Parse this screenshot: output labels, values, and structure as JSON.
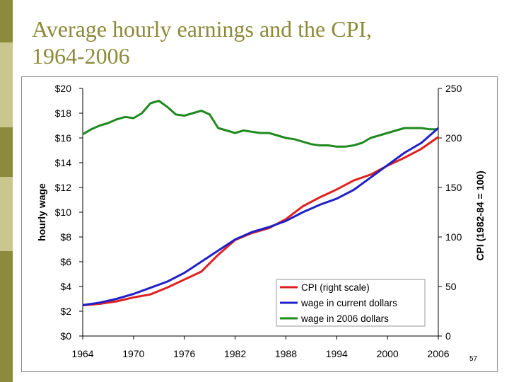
{
  "slide": {
    "title_line1": "Average hourly earnings and the CPI,",
    "title_line2": "1964-2006",
    "slide_number": "57",
    "colors": {
      "title": "#8c8a3c",
      "sidebar_olive": "#8c8a3c",
      "sidebar_khaki": "#c9c78f"
    }
  },
  "chart_data": {
    "type": "line",
    "title": "",
    "xlabel": "",
    "ylabel_left": "hourly wage",
    "ylabel_right": "CPI  (1982-84 = 100)",
    "xlim": [
      1964,
      2006
    ],
    "ylim_left": [
      0,
      20
    ],
    "ylim_right": [
      0,
      250
    ],
    "x_ticks": [
      "1964",
      "1970",
      "1976",
      "1982",
      "1988",
      "1994",
      "2000",
      "2006"
    ],
    "y_left_ticks": [
      "$0",
      "$2",
      "$4",
      "$6",
      "$8",
      "$10",
      "$12",
      "$14",
      "$16",
      "$18",
      "$20"
    ],
    "y_right_ticks": [
      "0",
      "50",
      "100",
      "150",
      "200",
      "250"
    ],
    "legend_position": "bottom-right",
    "grid": false,
    "series": [
      {
        "name": "CPI  (right scale)",
        "axis": "right",
        "color": "#e02020",
        "x": [
          1964,
          1966,
          1968,
          1970,
          1972,
          1974,
          1976,
          1978,
          1980,
          1982,
          1984,
          1986,
          1988,
          1990,
          1992,
          1994,
          1996,
          1998,
          2000,
          2002,
          2004,
          2006
        ],
        "y": [
          31,
          32.5,
          35,
          39,
          42,
          49,
          57,
          65,
          82,
          97,
          104,
          109,
          118,
          131,
          140,
          148,
          157,
          163,
          172,
          180,
          189,
          201
        ]
      },
      {
        "name": "wage in current dollars",
        "axis": "left",
        "color": "#2020c8",
        "x": [
          1964,
          1966,
          1968,
          1970,
          1972,
          1974,
          1976,
          1978,
          1980,
          1982,
          1984,
          1986,
          1988,
          1990,
          1992,
          1994,
          1996,
          1998,
          2000,
          2002,
          2004,
          2006
        ],
        "y": [
          2.5,
          2.7,
          3.0,
          3.4,
          3.9,
          4.4,
          5.1,
          6.0,
          6.9,
          7.8,
          8.4,
          8.8,
          9.3,
          10.0,
          10.6,
          11.1,
          11.8,
          12.8,
          13.8,
          14.8,
          15.6,
          16.8
        ]
      },
      {
        "name": "wage in 2006 dollars",
        "axis": "left",
        "color": "#1e8a1e",
        "x": [
          1964,
          1965,
          1966,
          1967,
          1968,
          1969,
          1970,
          1971,
          1972,
          1973,
          1974,
          1975,
          1976,
          1977,
          1978,
          1979,
          1980,
          1981,
          1982,
          1983,
          1984,
          1985,
          1986,
          1987,
          1988,
          1989,
          1990,
          1991,
          1992,
          1993,
          1994,
          1995,
          1996,
          1997,
          1998,
          1999,
          2000,
          2001,
          2002,
          2003,
          2004,
          2005,
          2006
        ],
        "y": [
          16.3,
          16.7,
          17.0,
          17.2,
          17.5,
          17.7,
          17.6,
          18.0,
          18.8,
          19.0,
          18.5,
          17.9,
          17.8,
          18.0,
          18.2,
          17.9,
          16.8,
          16.6,
          16.4,
          16.6,
          16.5,
          16.4,
          16.4,
          16.2,
          16.0,
          15.9,
          15.7,
          15.5,
          15.4,
          15.4,
          15.3,
          15.3,
          15.4,
          15.6,
          16.0,
          16.2,
          16.4,
          16.6,
          16.8,
          16.8,
          16.8,
          16.7,
          16.7
        ]
      }
    ]
  }
}
